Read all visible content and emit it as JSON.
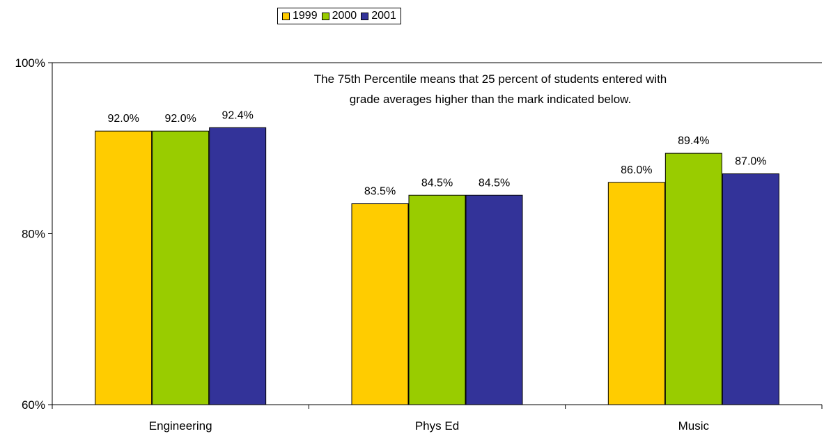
{
  "chart_data": {
    "type": "bar",
    "categories": [
      "Engineering",
      "Phys Ed",
      "Music"
    ],
    "series": [
      {
        "name": "1999",
        "color": "#FFCC00",
        "values": [
          92.0,
          83.5,
          86.0
        ],
        "labels": [
          "92.0%",
          "83.5%",
          "86.0%"
        ]
      },
      {
        "name": "2000",
        "color": "#99CC00",
        "values": [
          92.0,
          84.5,
          89.4
        ],
        "labels": [
          "92.0%",
          "84.5%",
          "89.4%"
        ]
      },
      {
        "name": "2001",
        "color": "#333399",
        "values": [
          92.4,
          84.5,
          87.0
        ],
        "labels": [
          "92.4%",
          "84.5%",
          "87.0%"
        ]
      }
    ],
    "ylim": [
      60,
      100
    ],
    "yticks": [
      60,
      80,
      100
    ],
    "ytick_labels": [
      "60%",
      "80%",
      "100%"
    ],
    "annotation": [
      "The 75th Percentile means that 25 percent of students entered with",
      "grade averages higher than the mark indicated below."
    ],
    "legend_position": "top-center",
    "grid": false
  }
}
